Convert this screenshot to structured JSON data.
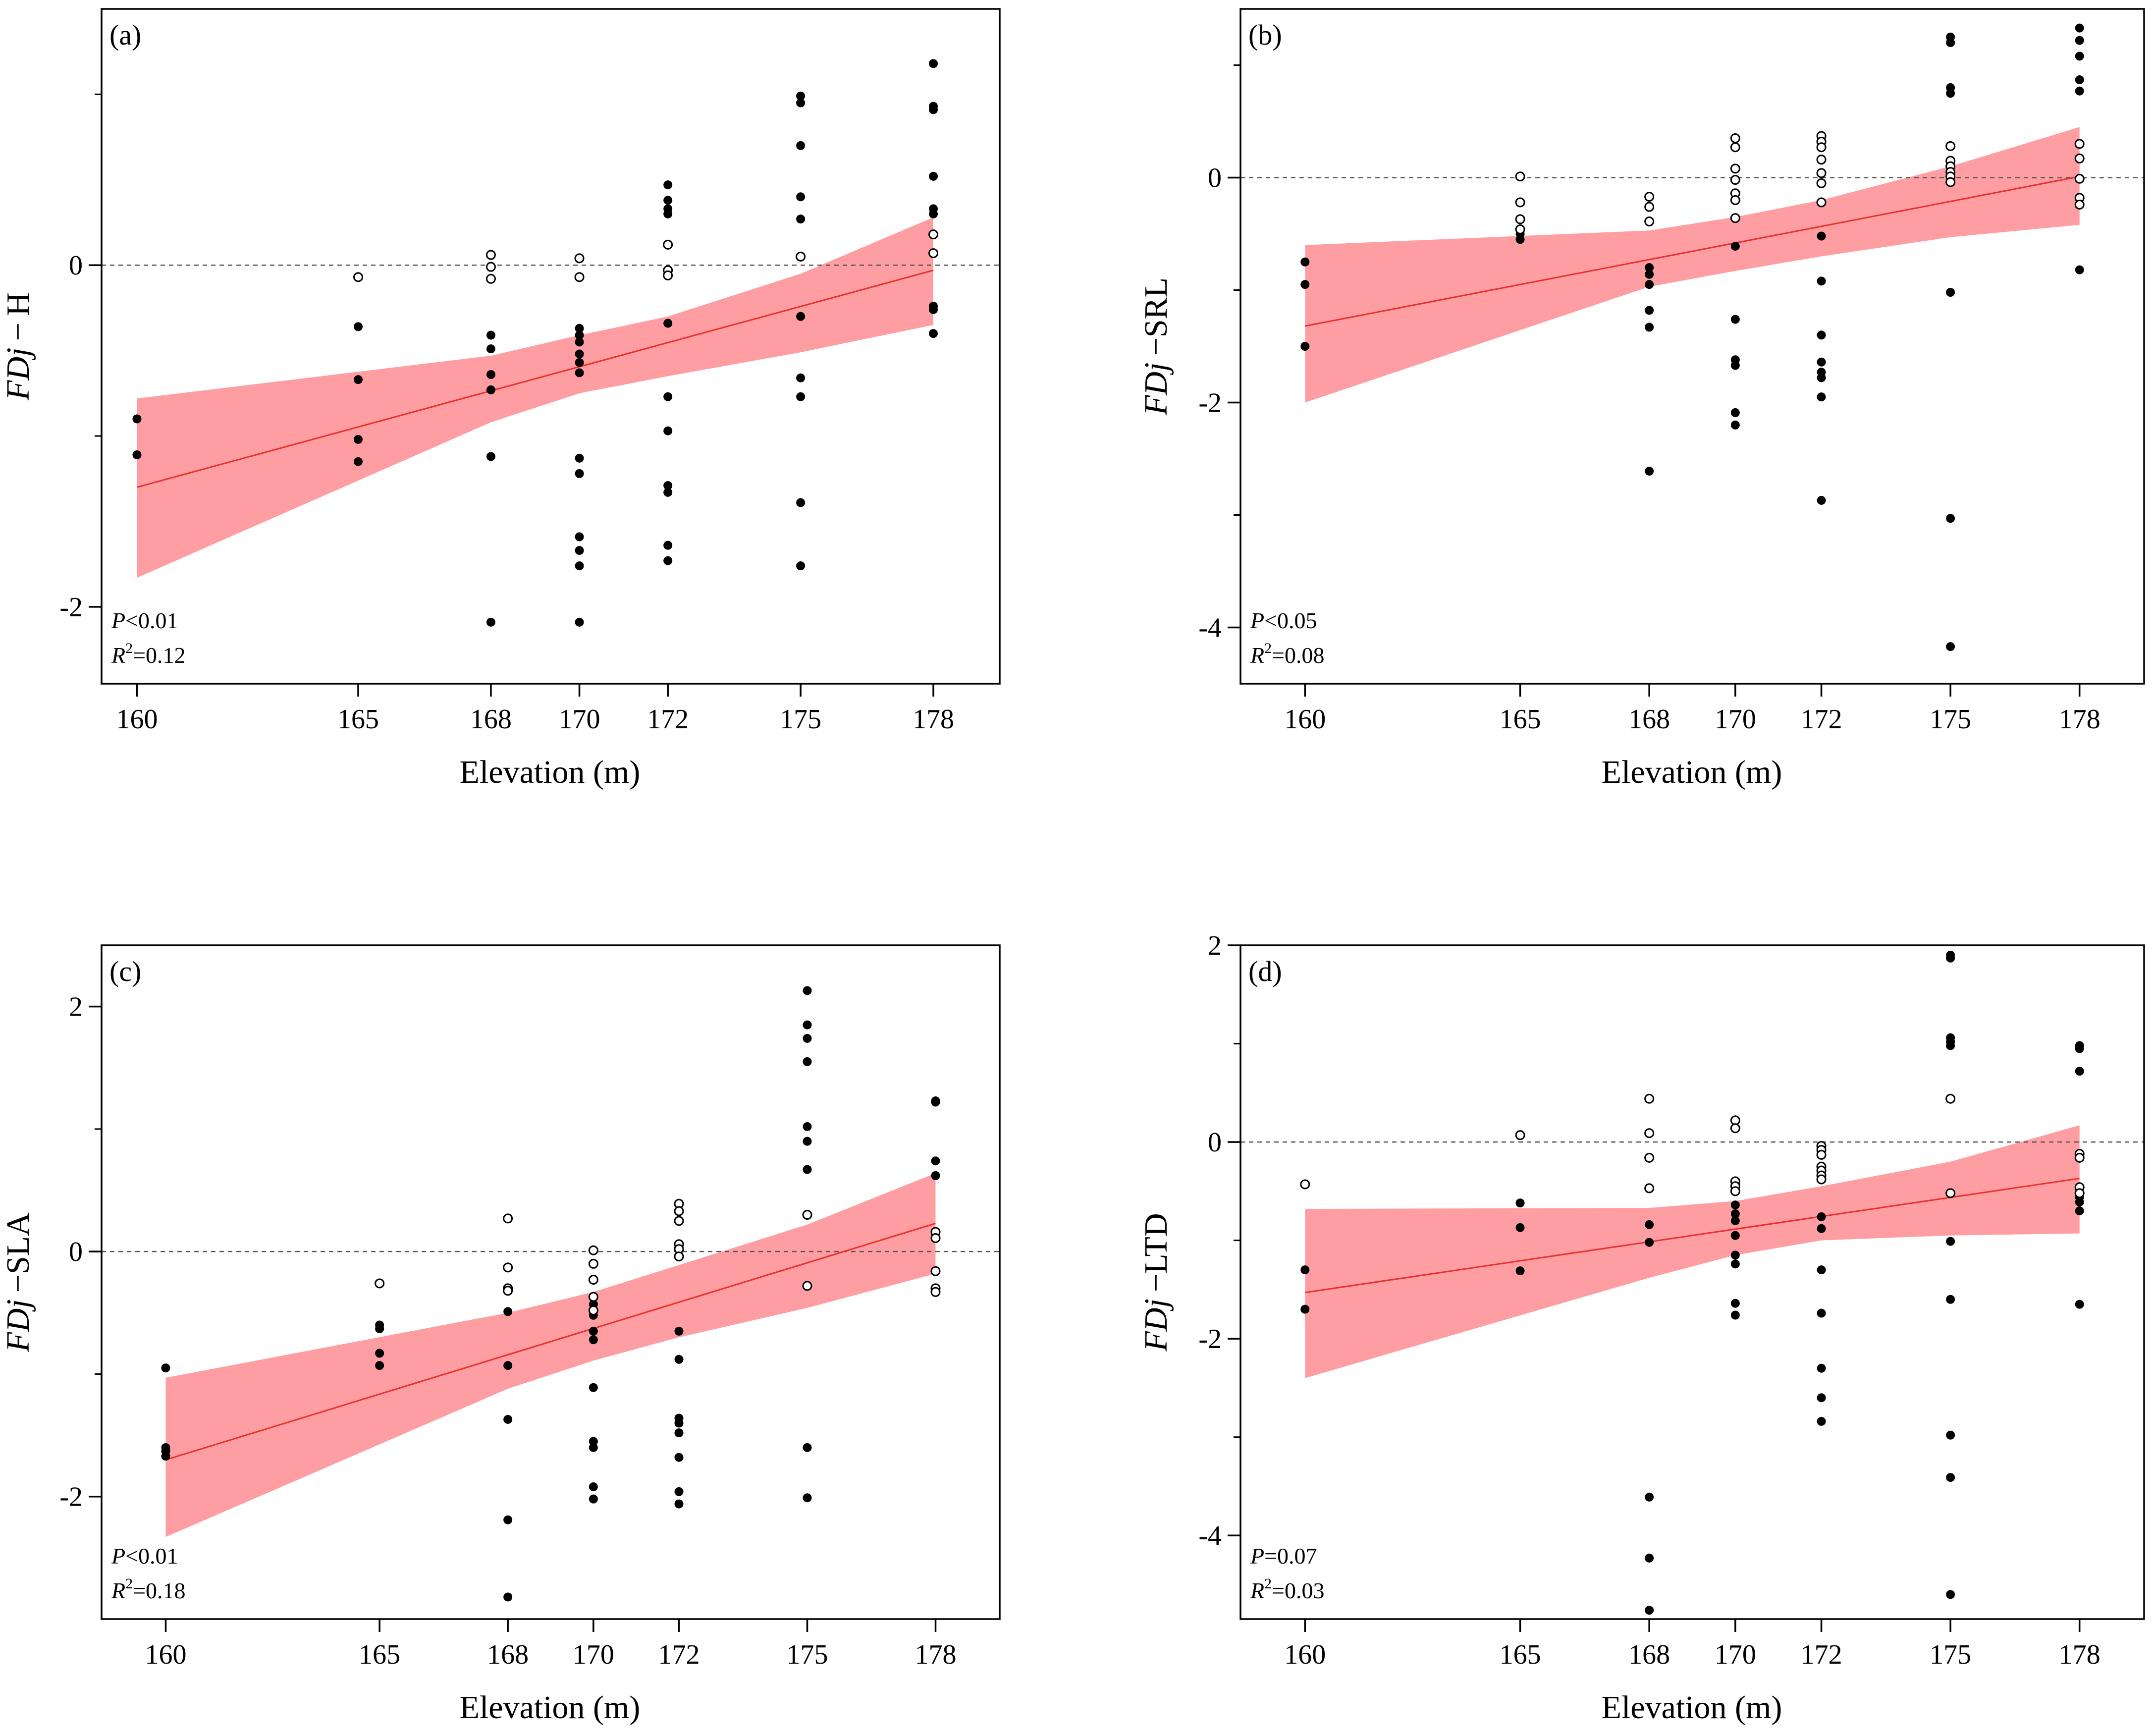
{
  "figure": {
    "xlabel": "Elevation (m)",
    "x_ticks": [
      160,
      165,
      168,
      170,
      172,
      175,
      178
    ],
    "band_color": "#ff9ea2",
    "fit_color": "#e8302f",
    "point_color": "#000000"
  },
  "chart_data": [
    {
      "type": "scatter",
      "panel_label": "(a)",
      "ylabel_italic": "FDj",
      "ylabel_suffix": " − H",
      "xlabel": "Elevation (m)",
      "x_ticks": [
        160,
        165,
        168,
        170,
        172,
        175,
        178
      ],
      "xlim": [
        159.2,
        179.5
      ],
      "y_ticks": [
        0,
        -2
      ],
      "y_minor_ticks": [
        1,
        -1
      ],
      "ylim": [
        -2.45,
        1.5
      ],
      "zero_line": true,
      "stat_p_italic": "P",
      "stat_p_rest": "<0.01",
      "stat_r_italic": "R",
      "stat_r_sup": "2",
      "stat_r_rest": "=0.12",
      "fit": {
        "x": [
          160,
          178
        ],
        "y": [
          -1.3,
          -0.03
        ]
      },
      "band": {
        "x": [
          160,
          168,
          170,
          172,
          175,
          178
        ],
        "upper": [
          -0.78,
          -0.53,
          -0.41,
          -0.3,
          -0.05,
          0.28
        ],
        "lower": [
          -1.83,
          -0.92,
          -0.75,
          -0.65,
          -0.51,
          -0.35
        ]
      },
      "filled": [
        [
          160,
          -0.9
        ],
        [
          160,
          -1.11
        ],
        [
          165,
          -0.36
        ],
        [
          165,
          -0.67
        ],
        [
          165,
          -1.02
        ],
        [
          165,
          -1.15
        ],
        [
          168,
          -0.41
        ],
        [
          168,
          -0.49
        ],
        [
          168,
          -0.64
        ],
        [
          168,
          -0.73
        ],
        [
          168,
          -1.12
        ],
        [
          168,
          -2.09
        ],
        [
          170,
          -0.37
        ],
        [
          170,
          -0.41
        ],
        [
          170,
          -0.45
        ],
        [
          170,
          -0.52
        ],
        [
          170,
          -0.57
        ],
        [
          170,
          -0.63
        ],
        [
          170,
          -1.13
        ],
        [
          170,
          -1.22
        ],
        [
          170,
          -1.59
        ],
        [
          170,
          -1.67
        ],
        [
          170,
          -1.76
        ],
        [
          170,
          -2.09
        ],
        [
          172,
          0.47
        ],
        [
          172,
          0.38
        ],
        [
          172,
          0.33
        ],
        [
          172,
          0.3
        ],
        [
          172,
          -0.34
        ],
        [
          172,
          -0.77
        ],
        [
          172,
          -0.97
        ],
        [
          172,
          -1.29
        ],
        [
          172,
          -1.33
        ],
        [
          172,
          -1.64
        ],
        [
          172,
          -1.73
        ],
        [
          175,
          0.99
        ],
        [
          175,
          0.95
        ],
        [
          175,
          0.7
        ],
        [
          175,
          0.4
        ],
        [
          175,
          0.27
        ],
        [
          175,
          -0.3
        ],
        [
          175,
          -0.66
        ],
        [
          175,
          -0.77
        ],
        [
          175,
          -1.39
        ],
        [
          175,
          -1.76
        ],
        [
          178,
          1.18
        ],
        [
          178,
          0.93
        ],
        [
          178,
          0.91
        ],
        [
          178,
          0.52
        ],
        [
          178,
          0.33
        ],
        [
          178,
          0.3
        ],
        [
          178,
          -0.24
        ],
        [
          178,
          -0.26
        ],
        [
          178,
          -0.4
        ]
      ],
      "open": [
        [
          165,
          -0.07
        ],
        [
          168,
          0.06
        ],
        [
          168,
          -0.01
        ],
        [
          168,
          -0.08
        ],
        [
          170,
          0.04
        ],
        [
          170,
          -0.07
        ],
        [
          172,
          0.12
        ],
        [
          172,
          -0.03
        ],
        [
          172,
          -0.06
        ],
        [
          175,
          0.05
        ],
        [
          178,
          0.18
        ],
        [
          178,
          0.07
        ]
      ]
    },
    {
      "type": "scatter",
      "panel_label": "(b)",
      "ylabel_italic": "FDj",
      "ylabel_suffix": " −SRL",
      "xlabel": "Elevation (m)",
      "x_ticks": [
        160,
        165,
        168,
        170,
        172,
        175,
        178
      ],
      "xlim": [
        158.5,
        179.5
      ],
      "y_ticks": [
        0,
        -2,
        -4
      ],
      "y_minor_ticks": [
        1,
        -1,
        -3
      ],
      "ylim": [
        -4.5,
        1.5
      ],
      "zero_line": true,
      "stat_p_italic": "P",
      "stat_p_rest": "<0.05",
      "stat_r_italic": "R",
      "stat_r_sup": "2",
      "stat_r_rest": "=0.08",
      "fit": {
        "x": [
          160,
          178
        ],
        "y": [
          -1.32,
          0.01
        ]
      },
      "band": {
        "x": [
          160,
          168,
          170,
          172,
          175,
          178
        ],
        "upper": [
          -0.6,
          -0.47,
          -0.35,
          -0.2,
          0.1,
          0.45
        ],
        "lower": [
          -2.0,
          -0.97,
          -0.83,
          -0.7,
          -0.53,
          -0.42
        ]
      },
      "filled": [
        [
          160,
          -0.75
        ],
        [
          160,
          -0.95
        ],
        [
          160,
          -1.5
        ],
        [
          165,
          -0.5
        ],
        [
          165,
          -0.55
        ],
        [
          168,
          -0.8
        ],
        [
          168,
          -0.86
        ],
        [
          168,
          -0.95
        ],
        [
          168,
          -1.18
        ],
        [
          168,
          -1.33
        ],
        [
          168,
          -2.61
        ],
        [
          170,
          -0.61
        ],
        [
          170,
          -1.26
        ],
        [
          170,
          -1.62
        ],
        [
          170,
          -1.67
        ],
        [
          170,
          -2.09
        ],
        [
          170,
          -2.2
        ],
        [
          172,
          -0.52
        ],
        [
          172,
          -0.92
        ],
        [
          172,
          -1.4
        ],
        [
          172,
          -1.64
        ],
        [
          172,
          -1.73
        ],
        [
          172,
          -1.78
        ],
        [
          172,
          -1.95
        ],
        [
          172,
          -2.87
        ],
        [
          175,
          1.25
        ],
        [
          175,
          1.2
        ],
        [
          175,
          0.8
        ],
        [
          175,
          0.75
        ],
        [
          175,
          -1.02
        ],
        [
          175,
          -3.03
        ],
        [
          175,
          -4.17
        ],
        [
          178,
          1.33
        ],
        [
          178,
          1.22
        ],
        [
          178,
          1.08
        ],
        [
          178,
          0.87
        ],
        [
          178,
          0.77
        ],
        [
          178,
          -0.82
        ]
      ],
      "open": [
        [
          165,
          0.01
        ],
        [
          165,
          -0.22
        ],
        [
          165,
          -0.37
        ],
        [
          165,
          -0.46
        ],
        [
          168,
          -0.17
        ],
        [
          168,
          -0.26
        ],
        [
          168,
          -0.39
        ],
        [
          170,
          0.35
        ],
        [
          170,
          0.27
        ],
        [
          170,
          0.08
        ],
        [
          170,
          -0.02
        ],
        [
          170,
          -0.14
        ],
        [
          170,
          -0.2
        ],
        [
          170,
          -0.36
        ],
        [
          172,
          0.37
        ],
        [
          172,
          0.32
        ],
        [
          172,
          0.27
        ],
        [
          172,
          0.16
        ],
        [
          172,
          0.04
        ],
        [
          172,
          -0.05
        ],
        [
          172,
          -0.22
        ],
        [
          175,
          0.28
        ],
        [
          175,
          0.15
        ],
        [
          175,
          0.1
        ],
        [
          175,
          0.05
        ],
        [
          175,
          0.01
        ],
        [
          175,
          -0.04
        ],
        [
          178,
          0.3
        ],
        [
          178,
          0.17
        ],
        [
          178,
          -0.01
        ],
        [
          178,
          -0.18
        ],
        [
          178,
          -0.24
        ]
      ]
    },
    {
      "type": "scatter",
      "panel_label": "(c)",
      "ylabel_italic": "FDj",
      "ylabel_suffix": " −SLA",
      "xlabel": "Elevation (m)",
      "x_ticks": [
        160,
        165,
        168,
        170,
        172,
        175,
        178
      ],
      "xlim": [
        158.5,
        179.5
      ],
      "y_ticks": [
        2,
        0,
        -2
      ],
      "y_minor_ticks": [
        1,
        -1
      ],
      "ylim": [
        -3.0,
        2.5
      ],
      "zero_line": true,
      "stat_p_italic": "P",
      "stat_p_rest": "<0.01",
      "stat_r_italic": "R",
      "stat_r_sup": "2",
      "stat_r_rest": "=0.18",
      "fit": {
        "x": [
          160,
          178
        ],
        "y": [
          -1.7,
          0.23
        ]
      },
      "band": {
        "x": [
          160,
          168,
          170,
          172,
          175,
          178
        ],
        "upper": [
          -1.03,
          -0.5,
          -0.33,
          -0.11,
          0.22,
          0.64
        ],
        "lower": [
          -2.33,
          -1.12,
          -0.89,
          -0.7,
          -0.46,
          -0.18
        ]
      },
      "filled": [
        [
          160,
          -0.95
        ],
        [
          160,
          -1.6
        ],
        [
          160,
          -1.63
        ],
        [
          160,
          -1.67
        ],
        [
          165,
          -0.6
        ],
        [
          165,
          -0.63
        ],
        [
          165,
          -0.83
        ],
        [
          165,
          -0.93
        ],
        [
          168,
          -0.49
        ],
        [
          168,
          -0.93
        ],
        [
          168,
          -1.37
        ],
        [
          168,
          -2.19
        ],
        [
          168,
          -2.82
        ],
        [
          170,
          -0.43
        ],
        [
          170,
          -0.52
        ],
        [
          170,
          -0.65
        ],
        [
          170,
          -0.72
        ],
        [
          170,
          -1.11
        ],
        [
          170,
          -1.55
        ],
        [
          170,
          -1.6
        ],
        [
          170,
          -1.92
        ],
        [
          170,
          -2.02
        ],
        [
          172,
          -0.65
        ],
        [
          172,
          -0.88
        ],
        [
          172,
          -1.36
        ],
        [
          172,
          -1.4
        ],
        [
          172,
          -1.48
        ],
        [
          172,
          -1.68
        ],
        [
          172,
          -1.96
        ],
        [
          172,
          -2.06
        ],
        [
          175,
          2.13
        ],
        [
          175,
          1.85
        ],
        [
          175,
          1.74
        ],
        [
          175,
          1.55
        ],
        [
          175,
          1.02
        ],
        [
          175,
          0.9
        ],
        [
          175,
          0.67
        ],
        [
          175,
          -1.6
        ],
        [
          175,
          -2.01
        ],
        [
          178,
          1.23
        ],
        [
          178,
          1.22
        ],
        [
          178,
          0.74
        ],
        [
          178,
          0.62
        ]
      ],
      "open": [
        [
          165,
          -0.26
        ],
        [
          168,
          0.27
        ],
        [
          168,
          -0.13
        ],
        [
          168,
          -0.3
        ],
        [
          168,
          -0.32
        ],
        [
          170,
          0.01
        ],
        [
          170,
          -0.1
        ],
        [
          170,
          -0.23
        ],
        [
          170,
          -0.37
        ],
        [
          170,
          -0.48
        ],
        [
          172,
          0.39
        ],
        [
          172,
          0.33
        ],
        [
          172,
          0.25
        ],
        [
          172,
          0.06
        ],
        [
          172,
          0.02
        ],
        [
          172,
          -0.04
        ],
        [
          175,
          0.3
        ],
        [
          175,
          -0.28
        ],
        [
          178,
          0.16
        ],
        [
          178,
          0.11
        ],
        [
          178,
          -0.16
        ],
        [
          178,
          -0.3
        ],
        [
          178,
          -0.33
        ]
      ]
    },
    {
      "type": "scatter",
      "panel_label": "(d)",
      "ylabel_italic": "FDj",
      "ylabel_suffix": " −LTD",
      "xlabel": "Elevation (m)",
      "x_ticks": [
        160,
        165,
        168,
        170,
        172,
        175,
        178
      ],
      "xlim": [
        158.5,
        179.5
      ],
      "y_ticks": [
        2,
        0,
        -2,
        -4
      ],
      "y_minor_ticks": [
        1,
        -1,
        -3
      ],
      "ylim": [
        -4.85,
        2.0
      ],
      "zero_line": true,
      "stat_p_italic": "P",
      "stat_p_rest": "=0.07",
      "stat_r_italic": "R",
      "stat_r_sup": "2",
      "stat_r_rest": "=0.03",
      "fit": {
        "x": [
          160,
          178
        ],
        "y": [
          -1.53,
          -0.37
        ]
      },
      "band": {
        "x": [
          160,
          168,
          170,
          172,
          175,
          178
        ],
        "upper": [
          -0.68,
          -0.67,
          -0.6,
          -0.45,
          -0.2,
          0.17
        ],
        "lower": [
          -2.4,
          -1.38,
          -1.15,
          -1.0,
          -0.95,
          -0.93
        ]
      },
      "filled": [
        [
          160,
          -1.3
        ],
        [
          160,
          -1.7
        ],
        [
          165,
          -0.62
        ],
        [
          165,
          -0.87
        ],
        [
          165,
          -1.31
        ],
        [
          168,
          -0.84
        ],
        [
          168,
          -1.02
        ],
        [
          168,
          -3.61
        ],
        [
          168,
          -4.23
        ],
        [
          168,
          -4.76
        ],
        [
          170,
          -0.64
        ],
        [
          170,
          -0.73
        ],
        [
          170,
          -0.8
        ],
        [
          170,
          -0.95
        ],
        [
          170,
          -1.15
        ],
        [
          170,
          -1.24
        ],
        [
          170,
          -1.64
        ],
        [
          170,
          -1.76
        ],
        [
          172,
          -0.76
        ],
        [
          172,
          -0.88
        ],
        [
          172,
          -1.3
        ],
        [
          172,
          -1.74
        ],
        [
          172,
          -2.3
        ],
        [
          172,
          -2.6
        ],
        [
          172,
          -2.84
        ],
        [
          175,
          1.9
        ],
        [
          175,
          1.87
        ],
        [
          175,
          1.06
        ],
        [
          175,
          1.02
        ],
        [
          175,
          0.98
        ],
        [
          175,
          -1.01
        ],
        [
          175,
          -1.6
        ],
        [
          175,
          -2.98
        ],
        [
          175,
          -3.41
        ],
        [
          175,
          -4.6
        ],
        [
          178,
          0.98
        ],
        [
          178,
          0.95
        ],
        [
          178,
          0.72
        ],
        [
          178,
          -0.56
        ],
        [
          178,
          -0.61
        ],
        [
          178,
          -0.7
        ],
        [
          178,
          -1.65
        ]
      ],
      "open": [
        [
          160,
          -0.43
        ],
        [
          165,
          0.07
        ],
        [
          168,
          0.44
        ],
        [
          168,
          0.09
        ],
        [
          168,
          -0.16
        ],
        [
          168,
          -0.47
        ],
        [
          170,
          0.22
        ],
        [
          170,
          0.14
        ],
        [
          170,
          -0.4
        ],
        [
          170,
          -0.45
        ],
        [
          170,
          -0.5
        ],
        [
          172,
          -0.04
        ],
        [
          172,
          -0.08
        ],
        [
          172,
          -0.13
        ],
        [
          172,
          -0.25
        ],
        [
          172,
          -0.29
        ],
        [
          172,
          -0.34
        ],
        [
          172,
          -0.38
        ],
        [
          175,
          0.44
        ],
        [
          175,
          -0.52
        ],
        [
          178,
          -0.12
        ],
        [
          178,
          -0.16
        ],
        [
          178,
          -0.46
        ],
        [
          178,
          -0.52
        ]
      ]
    }
  ]
}
